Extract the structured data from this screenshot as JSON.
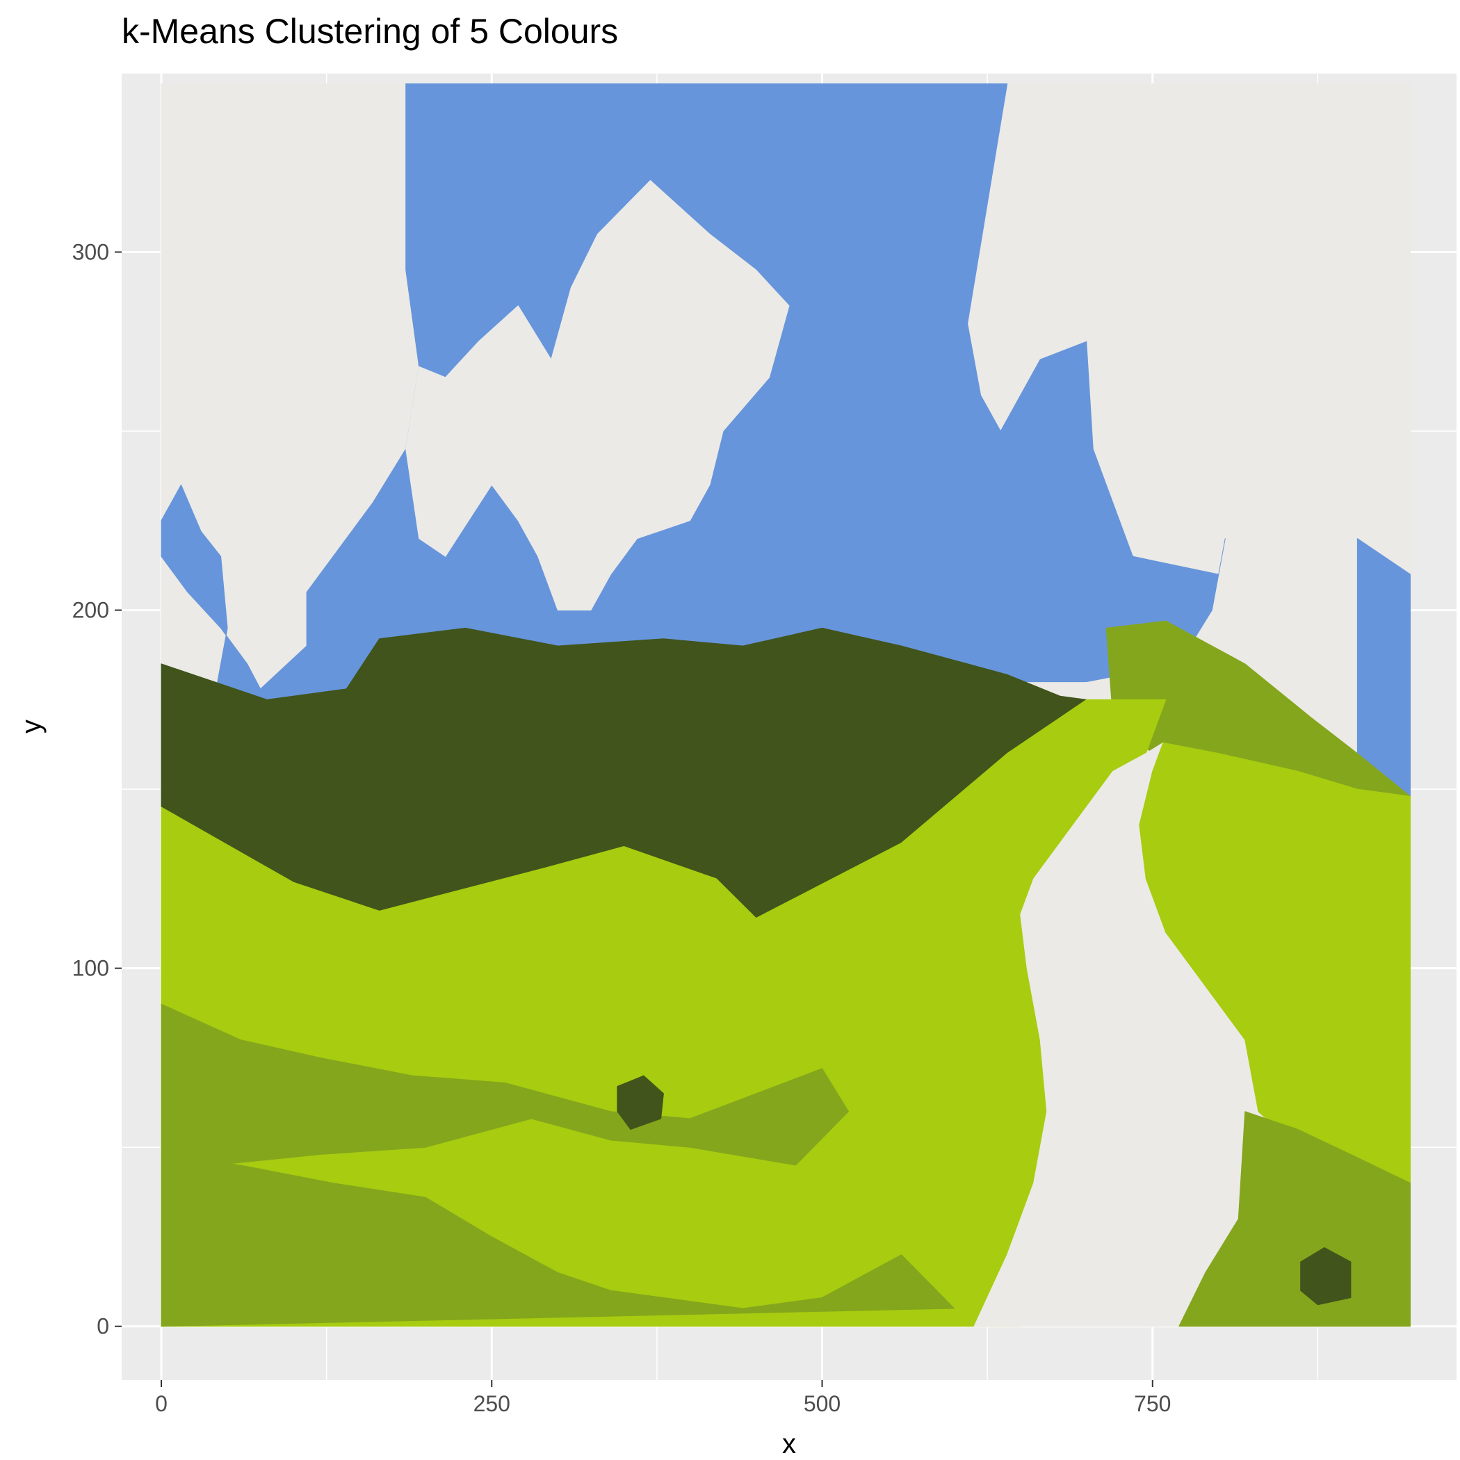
{
  "chart_data": {
    "type": "heatmap",
    "title": "k-Means Clustering of 5 Colours",
    "xlabel": "x",
    "ylabel": "y",
    "xlim": [
      -30,
      980
    ],
    "ylim": [
      -15,
      350
    ],
    "x_ticks": [
      0,
      250,
      500,
      750
    ],
    "y_ticks": [
      0,
      100,
      200,
      300
    ],
    "x_tick_labels": [
      "0",
      "250",
      "500",
      "750"
    ],
    "y_tick_labels": [
      "0",
      "100",
      "200",
      "300"
    ],
    "grid": true,
    "legend": "none",
    "extent": {
      "x": [
        0,
        945
      ],
      "y": [
        0,
        347
      ]
    },
    "panel_background": "#ebebeb",
    "clusters": [
      {
        "color": "#ebeae6"
      },
      {
        "color": "#6795db"
      },
      {
        "color": "#a7cc10"
      },
      {
        "color": "#84a61c"
      },
      {
        "color": "#40541b"
      }
    ],
    "regions": [
      {
        "cluster": 0,
        "description": "light sky / clouds background",
        "polygon": [
          [
            0,
            347
          ],
          [
            945,
            347
          ],
          [
            945,
            0
          ],
          [
            0,
            0
          ]
        ]
      },
      {
        "cluster": 1,
        "description": "blue sky",
        "polygon": [
          [
            185,
            347
          ],
          [
            640,
            347
          ],
          [
            610,
            280
          ],
          [
            620,
            260
          ],
          [
            635,
            250
          ],
          [
            665,
            270
          ],
          [
            700,
            275
          ],
          [
            705,
            245
          ],
          [
            735,
            215
          ],
          [
            800,
            210
          ],
          [
            805,
            220
          ],
          [
            795,
            200
          ],
          [
            770,
            185
          ],
          [
            700,
            180
          ],
          [
            620,
            180
          ],
          [
            575,
            185
          ],
          [
            500,
            182
          ],
          [
            430,
            180
          ],
          [
            385,
            182
          ],
          [
            320,
            180
          ],
          [
            230,
            178
          ],
          [
            190,
            177
          ],
          [
            150,
            178
          ],
          [
            120,
            176
          ],
          [
            100,
            175
          ],
          [
            60,
            172
          ],
          [
            40,
            175
          ],
          [
            50,
            195
          ],
          [
            45,
            215
          ],
          [
            30,
            222
          ],
          [
            15,
            235
          ],
          [
            0,
            225
          ],
          [
            0,
            215
          ],
          [
            20,
            205
          ],
          [
            45,
            195
          ],
          [
            65,
            185
          ],
          [
            75,
            178
          ],
          [
            110,
            190
          ],
          [
            110,
            205
          ],
          [
            160,
            230
          ],
          [
            185,
            245
          ],
          [
            195,
            268
          ],
          [
            185,
            295
          ],
          [
            185,
            347
          ]
        ]
      },
      {
        "cluster": 0,
        "description": "central cloud",
        "polygon": [
          [
            330,
            305
          ],
          [
            370,
            320
          ],
          [
            415,
            305
          ],
          [
            450,
            295
          ],
          [
            475,
            285
          ],
          [
            460,
            265
          ],
          [
            425,
            250
          ],
          [
            415,
            235
          ],
          [
            400,
            225
          ],
          [
            360,
            220
          ],
          [
            340,
            210
          ],
          [
            325,
            200
          ],
          [
            300,
            200
          ],
          [
            285,
            215
          ],
          [
            270,
            225
          ],
          [
            250,
            235
          ],
          [
            215,
            215
          ],
          [
            195,
            220
          ],
          [
            185,
            245
          ],
          [
            195,
            268
          ],
          [
            215,
            265
          ],
          [
            240,
            275
          ],
          [
            270,
            285
          ],
          [
            295,
            270
          ],
          [
            310,
            290
          ]
        ]
      },
      {
        "cluster": 1,
        "description": "sky patch right",
        "polygon": [
          [
            905,
            220
          ],
          [
            945,
            210
          ],
          [
            945,
            148
          ],
          [
            905,
            152
          ]
        ]
      },
      {
        "cluster": 4,
        "description": "dark forest",
        "polygon": [
          [
            0,
            185
          ],
          [
            40,
            180
          ],
          [
            80,
            175
          ],
          [
            140,
            178
          ],
          [
            165,
            192
          ],
          [
            230,
            195
          ],
          [
            300,
            190
          ],
          [
            380,
            192
          ],
          [
            440,
            190
          ],
          [
            500,
            195
          ],
          [
            560,
            190
          ],
          [
            640,
            182
          ],
          [
            680,
            176
          ],
          [
            700,
            175
          ],
          [
            640,
            160
          ],
          [
            560,
            135
          ],
          [
            450,
            114
          ],
          [
            420,
            125
          ],
          [
            350,
            134
          ],
          [
            290,
            128
          ],
          [
            165,
            116
          ],
          [
            100,
            124
          ],
          [
            0,
            145
          ]
        ]
      },
      {
        "cluster": 3,
        "description": "right shrubs",
        "polygon": [
          [
            715,
            195
          ],
          [
            760,
            197
          ],
          [
            820,
            185
          ],
          [
            870,
            170
          ],
          [
            905,
            160
          ],
          [
            945,
            148
          ],
          [
            945,
            140
          ],
          [
            860,
            145
          ],
          [
            800,
            150
          ],
          [
            750,
            160
          ],
          [
            720,
            170
          ]
        ]
      },
      {
        "cluster": 2,
        "description": "bright green hills",
        "polygon": [
          [
            0,
            145
          ],
          [
            100,
            124
          ],
          [
            165,
            116
          ],
          [
            290,
            128
          ],
          [
            350,
            134
          ],
          [
            420,
            125
          ],
          [
            450,
            114
          ],
          [
            560,
            135
          ],
          [
            640,
            160
          ],
          [
            700,
            175
          ],
          [
            760,
            175
          ],
          [
            745,
            160
          ],
          [
            720,
            140
          ],
          [
            705,
            125
          ],
          [
            695,
            110
          ],
          [
            705,
            85
          ],
          [
            715,
            65
          ],
          [
            700,
            30
          ],
          [
            650,
            0
          ],
          [
            0,
            0
          ]
        ]
      },
      {
        "cluster": 3,
        "description": "left meadow shading",
        "polygon": [
          [
            0,
            90
          ],
          [
            60,
            80
          ],
          [
            120,
            75
          ],
          [
            190,
            70
          ],
          [
            260,
            68
          ],
          [
            340,
            60
          ],
          [
            400,
            58
          ],
          [
            500,
            72
          ],
          [
            520,
            60
          ],
          [
            480,
            45
          ],
          [
            400,
            50
          ],
          [
            340,
            52
          ],
          [
            280,
            58
          ],
          [
            200,
            50
          ],
          [
            120,
            48
          ],
          [
            40,
            45
          ],
          [
            0,
            48
          ]
        ]
      },
      {
        "cluster": 3,
        "description": "lower left meadow",
        "polygon": [
          [
            0,
            48
          ],
          [
            60,
            45
          ],
          [
            130,
            40
          ],
          [
            200,
            36
          ],
          [
            250,
            25
          ],
          [
            300,
            15
          ],
          [
            340,
            10
          ],
          [
            380,
            8
          ],
          [
            440,
            5
          ],
          [
            500,
            8
          ],
          [
            560,
            20
          ],
          [
            600,
            5
          ],
          [
            0,
            0
          ]
        ]
      },
      {
        "cluster": 0,
        "description": "winding path",
        "polygon": [
          [
            745,
            160
          ],
          [
            758,
            163
          ],
          [
            750,
            155
          ],
          [
            740,
            140
          ],
          [
            725,
            125
          ],
          [
            720,
            110
          ],
          [
            745,
            95
          ],
          [
            790,
            80
          ],
          [
            820,
            60
          ],
          [
            820,
            30
          ],
          [
            800,
            15
          ],
          [
            770,
            5
          ],
          [
            760,
            0
          ],
          [
            615,
            0
          ],
          [
            640,
            20
          ],
          [
            660,
            40
          ],
          [
            670,
            60
          ],
          [
            665,
            80
          ],
          [
            655,
            100
          ],
          [
            650,
            115
          ],
          [
            660,
            125
          ],
          [
            690,
            140
          ],
          [
            720,
            155
          ]
        ]
      },
      {
        "cluster": 2,
        "description": "right hillside",
        "polygon": [
          [
            758,
            163
          ],
          [
            800,
            160
          ],
          [
            860,
            155
          ],
          [
            905,
            150
          ],
          [
            945,
            148
          ],
          [
            945,
            35
          ],
          [
            900,
            40
          ],
          [
            860,
            50
          ],
          [
            830,
            60
          ],
          [
            820,
            80
          ],
          [
            790,
            95
          ],
          [
            760,
            110
          ],
          [
            745,
            125
          ],
          [
            740,
            140
          ],
          [
            750,
            155
          ]
        ]
      },
      {
        "cluster": 3,
        "description": "lower right meadow",
        "polygon": [
          [
            820,
            60
          ],
          [
            860,
            55
          ],
          [
            900,
            48
          ],
          [
            945,
            40
          ],
          [
            945,
            0
          ],
          [
            770,
            0
          ],
          [
            790,
            15
          ],
          [
            815,
            30
          ]
        ]
      },
      {
        "cluster": 4,
        "description": "dark patch centre",
        "polygon": [
          [
            345,
            67
          ],
          [
            365,
            70
          ],
          [
            380,
            65
          ],
          [
            378,
            58
          ],
          [
            355,
            55
          ],
          [
            345,
            60
          ]
        ]
      },
      {
        "cluster": 4,
        "description": "dark patch lower right",
        "polygon": [
          [
            862,
            18
          ],
          [
            880,
            22
          ],
          [
            900,
            18
          ],
          [
            900,
            8
          ],
          [
            875,
            6
          ],
          [
            862,
            10
          ]
        ]
      }
    ]
  }
}
